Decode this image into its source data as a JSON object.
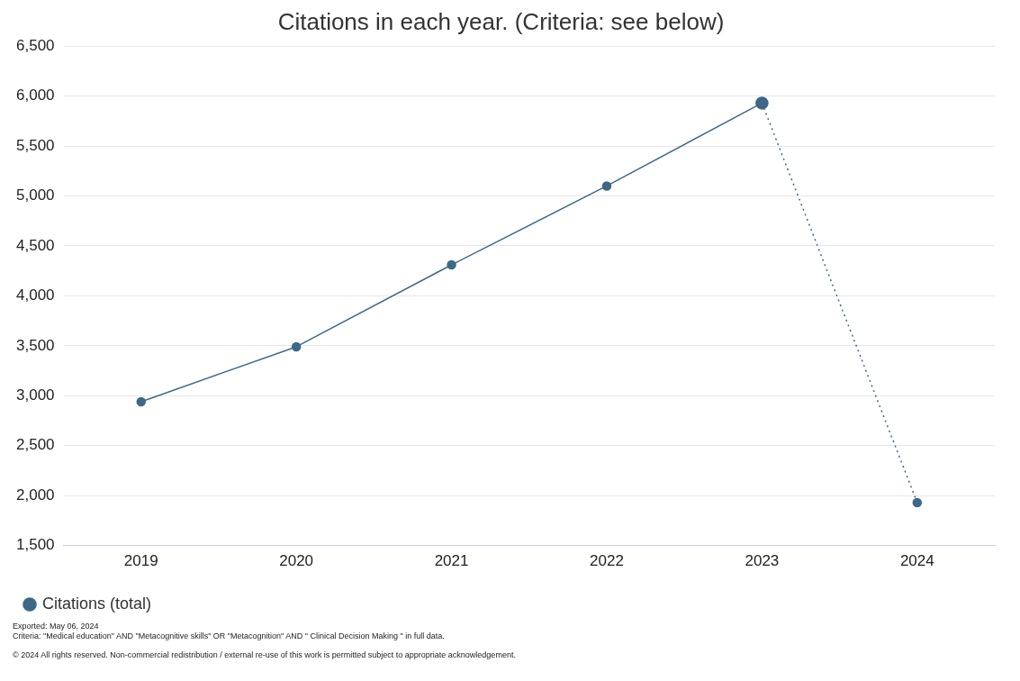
{
  "chart_data": {
    "type": "line",
    "title": "Citations in each year. (Criteria: see below)",
    "categories": [
      "2019",
      "2020",
      "2021",
      "2022",
      "2023",
      "2024"
    ],
    "series": [
      {
        "name": "Citations (total)",
        "color": "#3d6887",
        "values": [
          2940,
          3490,
          4310,
          5100,
          5930,
          null
        ],
        "line_style": "solid",
        "marker": "circle"
      },
      {
        "color": "#3d6887",
        "values": [
          null,
          null,
          null,
          null,
          5930,
          1930
        ],
        "line_style": "dotted",
        "marker": "circle"
      }
    ],
    "ylim": [
      1500,
      6500
    ],
    "yticks": [
      {
        "value": 1500,
        "label": "1,500"
      },
      {
        "value": 2000,
        "label": "2,000"
      },
      {
        "value": 2500,
        "label": "2,500"
      },
      {
        "value": 3000,
        "label": "3,000"
      },
      {
        "value": 3500,
        "label": "3,500"
      },
      {
        "value": 4000,
        "label": "4,000"
      },
      {
        "value": 4500,
        "label": "4,500"
      },
      {
        "value": 5000,
        "label": "5,000"
      },
      {
        "value": 5500,
        "label": "5,500"
      },
      {
        "value": 6000,
        "label": "6,000"
      },
      {
        "value": 6500,
        "label": "6,500"
      }
    ],
    "grid": "y",
    "legend": "bottom left",
    "annotations": [
      "Exported: May 06, 2024",
      "Criteria: \"Medical education\" AND \"Metacognitive skills\" OR \"Metacognition\" AND \" Clinical Decision Making \" in full data.",
      "© 2024 All rights reserved. Non-commercial redistribution / external re-use of this work is permitted subject to appropriate acknowledgement."
    ]
  }
}
